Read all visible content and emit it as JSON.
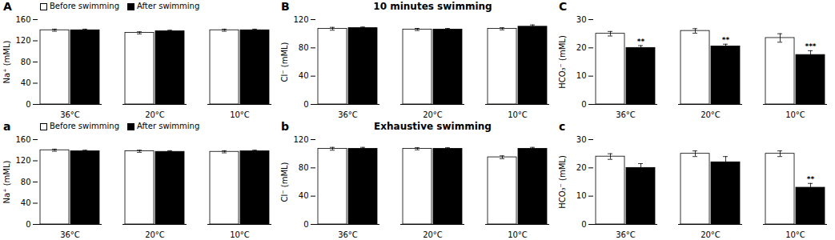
{
  "chart_data": [
    {
      "type": "bar",
      "panel_label": "A",
      "ylabel": "Na⁺ (mML)",
      "categories": [
        "36°C",
        "20°C",
        "10°C"
      ],
      "series": [
        {
          "name": "Before swimming",
          "color": "#ffffff",
          "values": [
            140,
            135,
            140
          ],
          "errors": [
            2,
            2,
            2
          ]
        },
        {
          "name": "After swimming",
          "color": "#000000",
          "values": [
            140,
            138,
            140
          ],
          "errors": [
            2,
            2,
            2
          ]
        }
      ],
      "ylim": [
        0,
        160
      ],
      "yticks": [
        0,
        40,
        80,
        120,
        160
      ],
      "legend": "upper left"
    },
    {
      "type": "bar",
      "panel_label": "B",
      "title": "10 minutes swimming",
      "ylabel": "Cl⁻ (mML)",
      "categories": [
        "36°C",
        "20°C",
        "10°C"
      ],
      "series": [
        {
          "color": "#ffffff",
          "values": [
            107,
            106,
            107
          ],
          "errors": [
            2,
            1.5,
            1.5
          ]
        },
        {
          "color": "#000000",
          "values": [
            108,
            106,
            110
          ],
          "errors": [
            1.5,
            1.5,
            2.5
          ]
        }
      ],
      "ylim": [
        0,
        120
      ],
      "yticks": [
        0,
        40,
        80,
        120
      ]
    },
    {
      "type": "bar",
      "panel_label": "C",
      "ylabel": "HCO₃⁻ (mML)",
      "categories": [
        "36°C",
        "20°C",
        "10°C"
      ],
      "series": [
        {
          "color": "#ffffff",
          "values": [
            25,
            26,
            23.5
          ],
          "errors": [
            0.8,
            0.8,
            1.5
          ]
        },
        {
          "color": "#000000",
          "values": [
            20,
            20.5,
            17.5
          ],
          "errors": [
            0.8,
            0.8,
            1.5
          ],
          "annotations": [
            "**",
            "**",
            "***"
          ]
        }
      ],
      "ylim": [
        0,
        30
      ],
      "yticks": [
        0,
        10,
        20,
        30
      ]
    },
    {
      "type": "bar",
      "panel_label": "a",
      "ylabel": "Na⁺ (mML)",
      "categories": [
        "36°C",
        "20°C",
        "10°C"
      ],
      "series": [
        {
          "name": "Before swimming",
          "color": "#ffffff",
          "values": [
            140,
            138,
            137
          ],
          "errors": [
            2,
            2,
            2
          ]
        },
        {
          "name": "After swimming",
          "color": "#000000",
          "values": [
            138,
            137,
            138
          ],
          "errors": [
            2,
            2,
            2
          ]
        }
      ],
      "ylim": [
        0,
        160
      ],
      "yticks": [
        0,
        40,
        80,
        120,
        160
      ],
      "legend": "upper left"
    },
    {
      "type": "bar",
      "panel_label": "b",
      "title": "Exhaustive swimming",
      "ylabel": "Cl⁻ (mML)",
      "categories": [
        "36°C",
        "20°C",
        "10°C"
      ],
      "series": [
        {
          "color": "#ffffff",
          "values": [
            107,
            107,
            95
          ],
          "errors": [
            2,
            1.5,
            2
          ]
        },
        {
          "color": "#000000",
          "values": [
            107,
            107,
            107
          ],
          "errors": [
            2,
            1.5,
            2
          ]
        }
      ],
      "ylim": [
        0,
        120
      ],
      "yticks": [
        0,
        40,
        80,
        120
      ]
    },
    {
      "type": "bar",
      "panel_label": "c",
      "ylabel": "HCO₃⁻ (mML)",
      "categories": [
        "36°C",
        "20°C",
        "10°C"
      ],
      "series": [
        {
          "color": "#ffffff",
          "values": [
            24,
            25,
            25
          ],
          "errors": [
            1,
            1,
            1
          ]
        },
        {
          "color": "#000000",
          "values": [
            20,
            22,
            13
          ],
          "errors": [
            1.5,
            2,
            1.5
          ],
          "annotations": [
            null,
            null,
            "**"
          ]
        }
      ],
      "ylim": [
        0,
        30
      ],
      "yticks": [
        0,
        10,
        20,
        30
      ]
    }
  ]
}
